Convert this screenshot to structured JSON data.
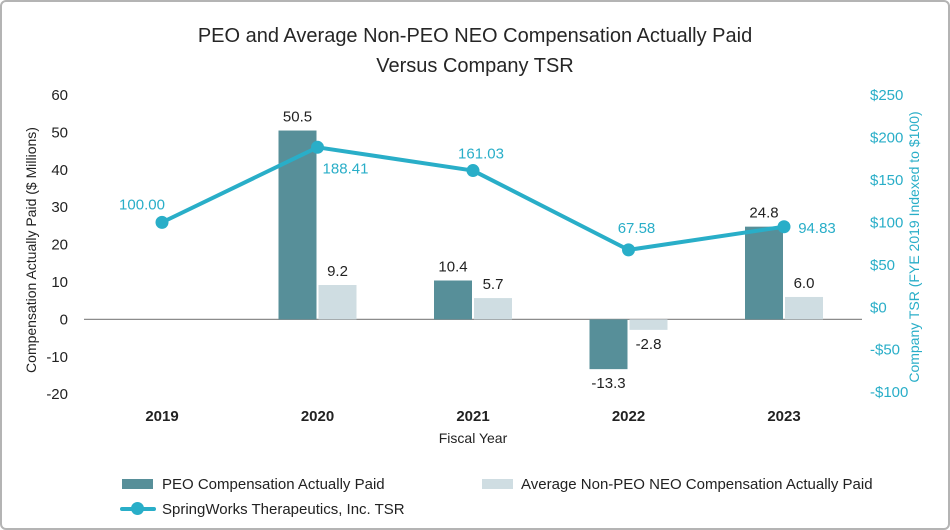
{
  "title": {
    "line1": "PEO and Average Non-PEO NEO Compensation Actually Paid",
    "line2": "Versus Company TSR"
  },
  "axes": {
    "left": {
      "title": "Compensation Actually Paid ($ Millions)",
      "tick_labels": [
        "60",
        "50",
        "40",
        "30",
        "20",
        "10",
        "0",
        "-10",
        "-20"
      ],
      "tick_values": [
        60,
        50,
        40,
        30,
        20,
        10,
        0,
        -10,
        -20
      ]
    },
    "right": {
      "title": "Company TSR (FYE 2019 Indexed to $100)",
      "tick_labels": [
        "$250",
        "$200",
        "$150",
        "$100",
        "$50",
        "$0",
        "-$50",
        "-$100"
      ],
      "tick_values": [
        250,
        200,
        150,
        100,
        50,
        0,
        -50,
        -100
      ]
    },
    "x": {
      "title": "Fiscal Year",
      "tick_labels": [
        "2019",
        "2020",
        "2021",
        "2022",
        "2023"
      ]
    }
  },
  "legend": {
    "peo_label": "PEO Compensation Actually Paid",
    "neo_label": "Average Non-PEO NEO Compensation Actually Paid",
    "tsr_label": "SpringWorks Therapeutics, Inc. TSR"
  },
  "colors": {
    "peo_bar": "#578F99",
    "neo_bar": "#CFDDE2",
    "tsr_line": "#29AEC8",
    "text": "#222222",
    "zero_line": "#8C8C8C",
    "border": "#B4B4B4"
  },
  "chart_data": {
    "type": "bar+line combo",
    "title": "PEO and Average Non-PEO NEO Compensation Actually Paid Versus Company TSR",
    "xlabel": "Fiscal Year",
    "ylabel_left": "Compensation Actually Paid ($ Millions)",
    "ylabel_right": "Company TSR (FYE 2019 Indexed to $100)",
    "ylim_left": [
      -20,
      60
    ],
    "ylim_right": [
      -100,
      250
    ],
    "grid": false,
    "legend_position": "bottom",
    "categories": [
      "2019",
      "2020",
      "2021",
      "2022",
      "2023"
    ],
    "series": [
      {
        "name": "PEO Compensation Actually Paid",
        "type": "bar",
        "axis": "left",
        "values": [
          null,
          50.5,
          10.4,
          -13.3,
          24.8
        ],
        "labels": [
          "",
          "50.5",
          "10.4",
          "-13.3",
          "24.8"
        ],
        "color": "#578F99"
      },
      {
        "name": "Average Non-PEO NEO Compensation Actually Paid",
        "type": "bar",
        "axis": "left",
        "values": [
          null,
          9.2,
          5.7,
          -2.8,
          6.0
        ],
        "labels": [
          "",
          "9.2",
          "5.7",
          "-2.8",
          "6.0"
        ],
        "color": "#CFDDE2"
      },
      {
        "name": "SpringWorks Therapeutics, Inc. TSR",
        "type": "line",
        "axis": "right",
        "values": [
          100.0,
          188.41,
          161.03,
          67.58,
          94.83
        ],
        "labels": [
          "100.00",
          "188.41",
          "161.03",
          "67.58",
          "94.83"
        ],
        "color": "#29AEC8"
      }
    ]
  }
}
